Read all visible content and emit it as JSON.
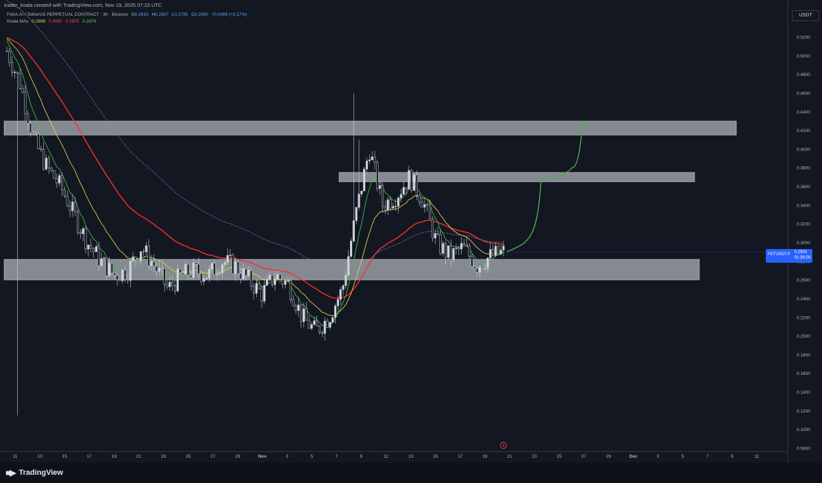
{
  "header": {
    "creator_line": "trader_koala created with TradingView.com, Nov 19, 2025 07:23 UTC",
    "instrument": "Fetch.AI / TetherUS PERPETUAL CONTRACT · 3h · Binance",
    "ohlc": {
      "o_label": "O",
      "o": "0.2810",
      "h_label": "H",
      "h": "0.2907",
      "l_label": "L",
      "l": "0.2795",
      "c_label": "C",
      "c": "0.2900",
      "change": "+0.0089 (+3.17%)"
    },
    "ma_label": "Koala MAs",
    "ma_values": [
      "0.2898",
      "0.3087",
      "0.2975",
      "0.2878"
    ]
  },
  "price_axis": {
    "unit": "USDT",
    "ticks": [
      "0.5200",
      "0.5000",
      "0.4800",
      "0.4600",
      "0.4400",
      "0.4200",
      "0.4000",
      "0.3800",
      "0.3600",
      "0.3400",
      "0.3200",
      "0.3000",
      "0.2800",
      "0.2600",
      "0.2400",
      "0.2200",
      "0.2000",
      "0.1800",
      "0.1600",
      "0.1400",
      "0.1200",
      "0.1000",
      "0.0800"
    ]
  },
  "price_tag": {
    "symbol": "FETUSDT.P",
    "price": "0.2900",
    "countdown": "01:36:58"
  },
  "brand": {
    "name": "TradingView"
  },
  "colors": {
    "background": "#131722",
    "candle": "#d1d4dc",
    "ma_yellow": "#e8d34a",
    "ma_red": "#ff2e2e",
    "ma_green": "#3fbf3f",
    "ma_dotted": "#8a8fb0",
    "zone": "#b2b5be",
    "projection": "#4caf50",
    "price_tag": "#2962ff"
  },
  "chart_data": {
    "type": "candlestick",
    "x_axis": {
      "tick_labels": [
        "11",
        "13",
        "15",
        "17",
        "19",
        "21",
        "23",
        "25",
        "27",
        "29",
        "Nov",
        "3",
        "5",
        "7",
        "9",
        "11",
        "13",
        "15",
        "17",
        "19",
        "21",
        "23",
        "25",
        "27",
        "29",
        "Dec",
        "3",
        "5",
        "7",
        "9",
        "11"
      ]
    },
    "y_axis": {
      "min": 0.07,
      "max": 0.53,
      "unit": "USDT"
    },
    "approx_close_path": [
      0.505,
      0.47,
      0.41,
      0.38,
      0.36,
      0.33,
      0.3,
      0.28,
      0.265,
      0.27,
      0.295,
      0.275,
      0.25,
      0.265,
      0.27,
      0.265,
      0.28,
      0.275,
      0.26,
      0.245,
      0.265,
      0.255,
      0.22,
      0.205,
      0.22,
      0.25,
      0.33,
      0.4,
      0.34,
      0.35,
      0.37,
      0.345,
      0.3,
      0.285,
      0.295,
      0.275,
      0.285,
      0.29
    ],
    "moving_averages": [
      {
        "color": "yellow",
        "last": 0.2898
      },
      {
        "color": "red",
        "last": 0.3087
      },
      {
        "color": "green",
        "last": 0.2878
      },
      {
        "color": "dotted",
        "last": 0.2975
      }
    ],
    "zones": [
      {
        "low": 0.415,
        "high": 0.43
      },
      {
        "low": 0.365,
        "high": 0.375
      },
      {
        "low": 0.26,
        "high": 0.282
      }
    ],
    "projection_path": [
      0.29,
      0.3,
      0.37,
      0.37,
      0.38,
      0.43
    ],
    "last_price": 0.29
  }
}
